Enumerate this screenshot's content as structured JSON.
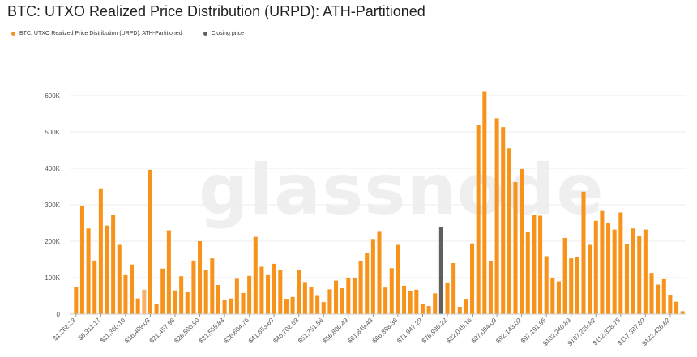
{
  "chart_data": {
    "type": "bar",
    "title": "BTC: UTXO Realized Price Distribution (URPD): ATH-Partitioned",
    "xlabel": "",
    "ylabel": "",
    "ylim": [
      0,
      600000
    ],
    "y_ticks": [
      0,
      100000,
      200000,
      300000,
      400000,
      500000,
      600000
    ],
    "y_tick_labels": [
      "0",
      "100K",
      "200K",
      "300K",
      "400K",
      "500K",
      "600K"
    ],
    "grid": true,
    "legend_position": "top-left",
    "watermark": "glassnode",
    "colors": {
      "series": "#f7931a",
      "highlight": "#f6b26b",
      "closing": "#5f5f5f",
      "grid": "#eeeeee"
    },
    "legend": [
      {
        "label": "BTC: UTXO Realized Price Distribution (URPD): ATH-Partitioned",
        "color": "#f7931a"
      },
      {
        "label": "Closing price",
        "color": "#5f5f5f"
      }
    ],
    "x_tick_labels": [
      "$1,262.23",
      "$6,311.17",
      "$11,360.10",
      "$16,409.03",
      "$21,457.96",
      "$26,506.90",
      "$31,555.83",
      "$36,604.76",
      "$41,653.69",
      "$46,702.63",
      "$51,751.56",
      "$56,800.49",
      "$61,849.43",
      "$66,898.36",
      "$71,947.29",
      "$76,996.22",
      "$82,045.16",
      "$87,094.09",
      "$92,143.02",
      "$97,191.95",
      "$102,240.89",
      "$107,289.82",
      "$112,338.75",
      "$117,387.69",
      "$122,436.62"
    ],
    "values": [
      75000,
      298000,
      235000,
      147000,
      345000,
      243000,
      273000,
      190000,
      107000,
      136000,
      43000,
      67000,
      396000,
      27000,
      125000,
      230000,
      65000,
      104000,
      60000,
      147000,
      200000,
      120000,
      153000,
      80000,
      40000,
      43000,
      97000,
      58000,
      105000,
      212000,
      130000,
      107000,
      138000,
      122000,
      42000,
      47000,
      121000,
      88000,
      74000,
      50000,
      33000,
      68000,
      92000,
      71000,
      100000,
      98000,
      145000,
      168000,
      206000,
      228000,
      73000,
      126000,
      190000,
      78000,
      64000,
      67000,
      28000,
      22000,
      57000,
      238000,
      87000,
      140000,
      20000,
      42000,
      194000,
      518000,
      610000,
      146000,
      537000,
      513000,
      455000,
      362000,
      398000,
      225000,
      273000,
      270000,
      159000,
      100000,
      90000,
      209000,
      153000,
      157000,
      336000,
      190000,
      256000,
      283000,
      250000,
      232000,
      279000,
      192000,
      235000,
      214000,
      232000,
      113000,
      81000,
      96000,
      53000,
      34000,
      8000
    ],
    "highlight_index": 11,
    "closing_index": 59
  }
}
